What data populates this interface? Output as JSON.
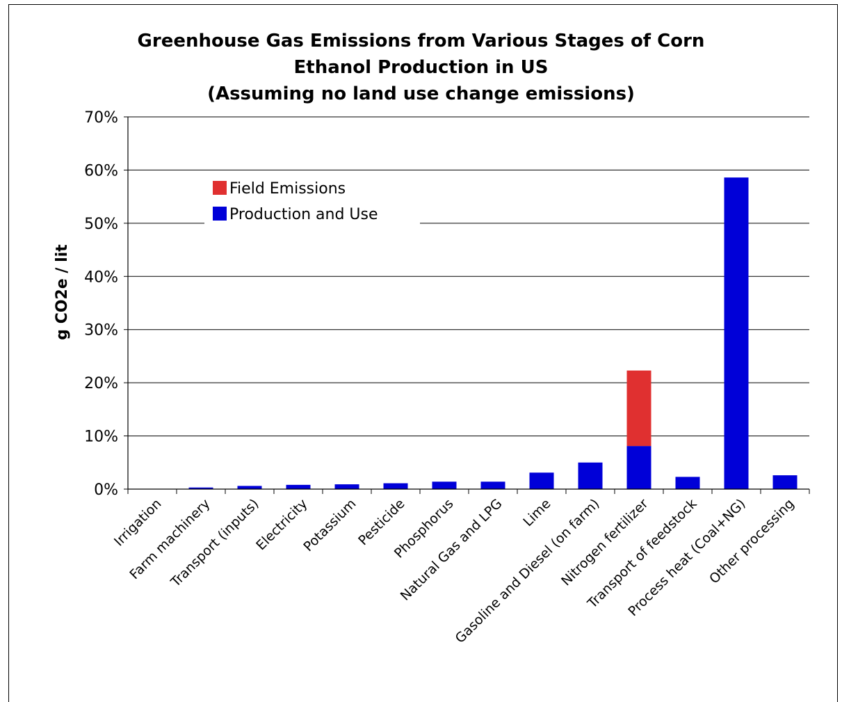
{
  "chart_data": {
    "type": "bar",
    "stacked": true,
    "title_lines": [
      "Greenhouse Gas Emissions from Various Stages of Corn",
      "Ethanol Production in US",
      "(Assuming no land use change emissions)"
    ],
    "xlabel": "",
    "ylabel": "g CO2e / lit",
    "ylim": [
      0,
      70
    ],
    "ytick_values": [
      0,
      10,
      20,
      30,
      40,
      50,
      60,
      70
    ],
    "ytick_labels": [
      "0%",
      "10%",
      "20%",
      "30%",
      "40%",
      "50%",
      "60%",
      "70%"
    ],
    "grid": true,
    "legend_position": "upper-left",
    "categories": [
      "Irrigation",
      "Farm machinery",
      "Transport (inputs)",
      "Electricity",
      "Potassium",
      "Pesticide",
      "Phosphorus",
      "Natural Gas and LPG",
      "Lime",
      "Gasoline and Diesel (on farm)",
      "Nitrogen fertilizer",
      "Transport of feedstock",
      "Process heat (Coal+NG)",
      "Other processing"
    ],
    "series": [
      {
        "name": "Production and Use",
        "color": "#0000d8",
        "values": [
          0,
          0.3,
          0.6,
          0.8,
          0.9,
          1.1,
          1.4,
          1.4,
          3.1,
          5.0,
          8.1,
          2.3,
          58.6,
          2.6
        ]
      },
      {
        "name": "Field Emissions",
        "color": "#e03030",
        "values": [
          0,
          0,
          0,
          0,
          0,
          0,
          0,
          0,
          0,
          0,
          14.2,
          0,
          0,
          0
        ]
      }
    ],
    "legend_order": [
      "Field Emissions",
      "Production and Use"
    ]
  }
}
